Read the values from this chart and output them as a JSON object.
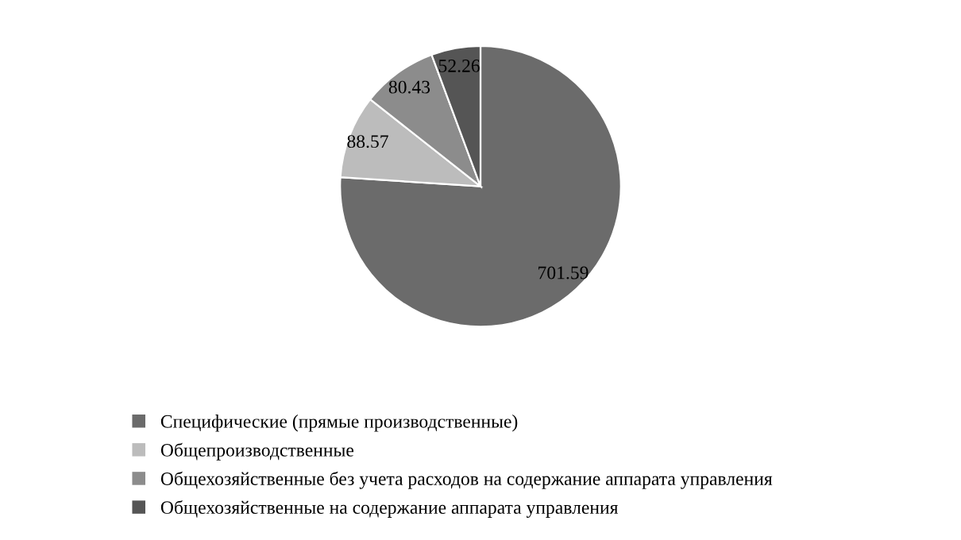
{
  "chart_data": {
    "type": "pie",
    "categories": [
      "Специфические (прямые производственные)",
      "Общепроизводственные",
      "Общехозяйственные без учета расходов на содержание аппарата управления",
      "Общехозяйственные на содержание аппарата управления"
    ],
    "values": [
      701.59,
      88.57,
      80.43,
      52.26
    ],
    "colors": [
      "#6b6b6b",
      "#bcbcbc",
      "#8c8c8c",
      "#555555"
    ],
    "data_labels": true,
    "legend": "bottom"
  }
}
